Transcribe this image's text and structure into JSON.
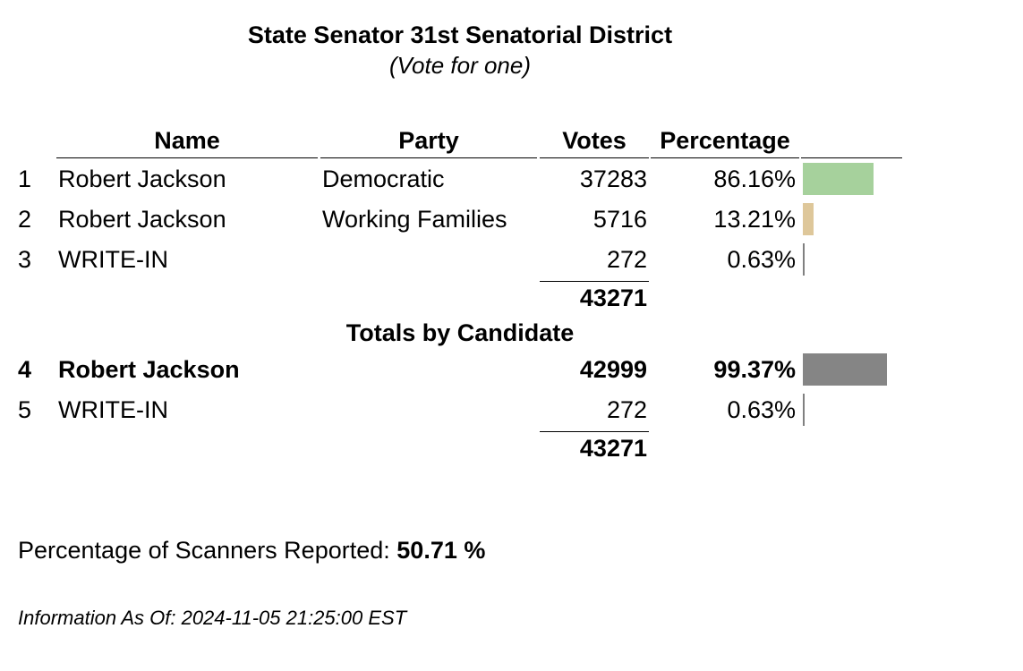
{
  "title": "State Senator 31st Senatorial District",
  "subtitle": "(Vote for one)",
  "headers": {
    "name": "Name",
    "party": "Party",
    "votes": "Votes",
    "percentage": "Percentage"
  },
  "rows": [
    {
      "num": "1",
      "name": "Robert Jackson",
      "party": "Democratic",
      "votes": "37283",
      "pct": "86.16%",
      "pct_value": 86.16,
      "bar_color": "#a6d19c"
    },
    {
      "num": "2",
      "name": "Robert Jackson",
      "party": "Working Families",
      "votes": "5716",
      "pct": "13.21%",
      "pct_value": 13.21,
      "bar_color": "#dec79a"
    },
    {
      "num": "3",
      "name": "WRITE-IN",
      "party": "",
      "votes": "272",
      "pct": "0.63%",
      "pct_value": 0.63,
      "bar_color": "#808080"
    }
  ],
  "total": "43271",
  "totals_heading": "Totals by Candidate",
  "candidate_rows": [
    {
      "num": "4",
      "name": "Robert Jackson",
      "votes": "42999",
      "pct": "99.37%",
      "pct_value": 99.37,
      "bar_color": "#858585"
    },
    {
      "num": "5",
      "name": "WRITE-IN",
      "votes": "272",
      "pct": "0.63%",
      "pct_value": 0.63,
      "bar_color": "#808080"
    }
  ],
  "candidate_total": "43271",
  "scanners": {
    "label": "Percentage of Scanners Reported:",
    "value": "50.71 %"
  },
  "as_of": "Information As Of: 2024-11-05 21:25:00 EST"
}
